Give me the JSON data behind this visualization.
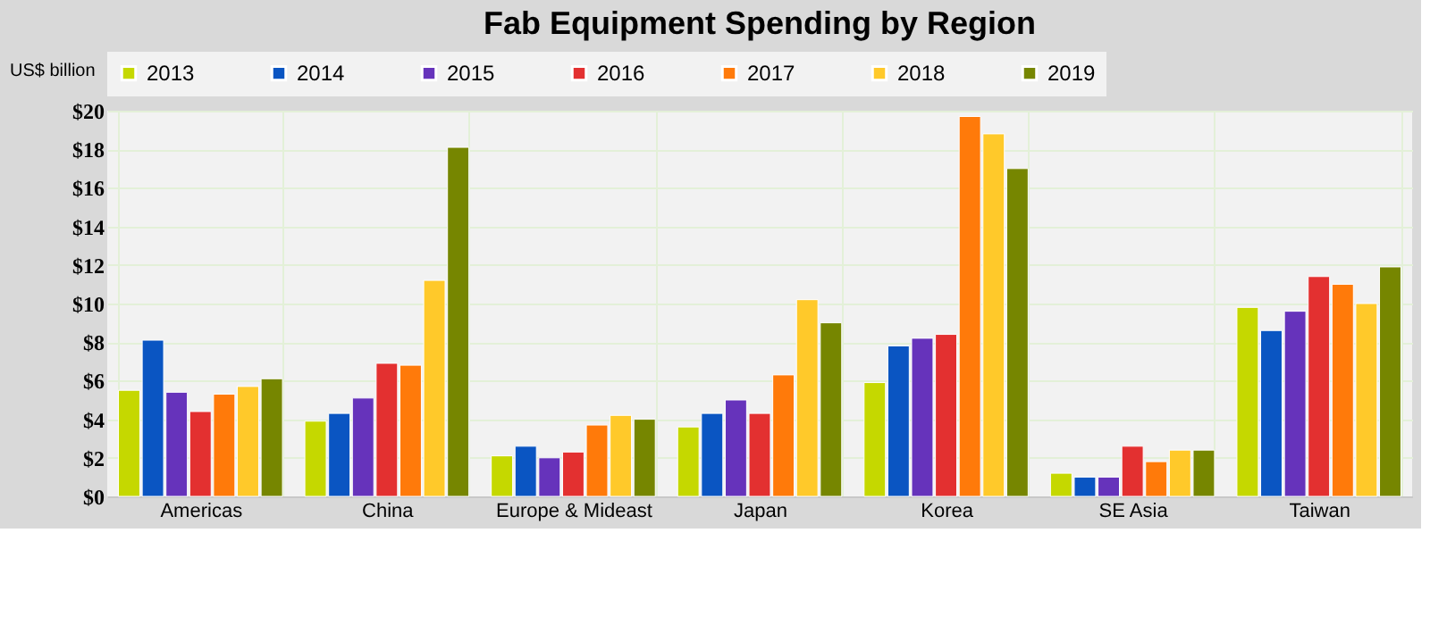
{
  "chart_data": {
    "type": "bar",
    "title": "Fab Equipment Spending by Region",
    "ylabel": "US$ billion",
    "categories": [
      "Americas",
      "China",
      "Europe & Mideast",
      "Japan",
      "Korea",
      "SE Asia",
      "Taiwan"
    ],
    "series": [
      {
        "name": "2013",
        "color": "#c5d800",
        "values": [
          5.5,
          3.9,
          2.1,
          3.6,
          5.9,
          1.2,
          9.8
        ]
      },
      {
        "name": "2014",
        "color": "#0a55c2",
        "values": [
          8.1,
          4.3,
          2.6,
          4.3,
          7.8,
          1.0,
          8.6
        ]
      },
      {
        "name": "2015",
        "color": "#6633bb",
        "values": [
          5.4,
          5.1,
          2.0,
          5.0,
          8.2,
          1.0,
          9.6
        ]
      },
      {
        "name": "2016",
        "color": "#e33030",
        "values": [
          4.4,
          6.9,
          2.3,
          4.3,
          8.4,
          2.6,
          11.4
        ]
      },
      {
        "name": "2017",
        "color": "#ff7a0a",
        "values": [
          5.3,
          6.8,
          3.7,
          6.3,
          19.7,
          1.8,
          11.0
        ]
      },
      {
        "name": "2018",
        "color": "#ffc92a",
        "values": [
          5.7,
          11.2,
          4.2,
          10.2,
          18.8,
          2.4,
          10.0
        ]
      },
      {
        "name": "2019",
        "color": "#768600",
        "values": [
          6.1,
          18.1,
          4.0,
          9.0,
          17.0,
          2.4,
          11.9
        ]
      }
    ],
    "ylim": [
      0,
      20
    ],
    "yticks": [
      {
        "value": 0,
        "label": "$0"
      },
      {
        "value": 2,
        "label": "$2"
      },
      {
        "value": 4,
        "label": "$4"
      },
      {
        "value": 6,
        "label": "$6"
      },
      {
        "value": 8,
        "label": "$8"
      },
      {
        "value": 10,
        "label": "$10"
      },
      {
        "value": 12,
        "label": "$12"
      },
      {
        "value": 14,
        "label": "$14"
      },
      {
        "value": 16,
        "label": "$16"
      },
      {
        "value": 18,
        "label": "$18"
      },
      {
        "value": 20,
        "label": "$20"
      }
    ],
    "grid": true,
    "legend": "top"
  }
}
